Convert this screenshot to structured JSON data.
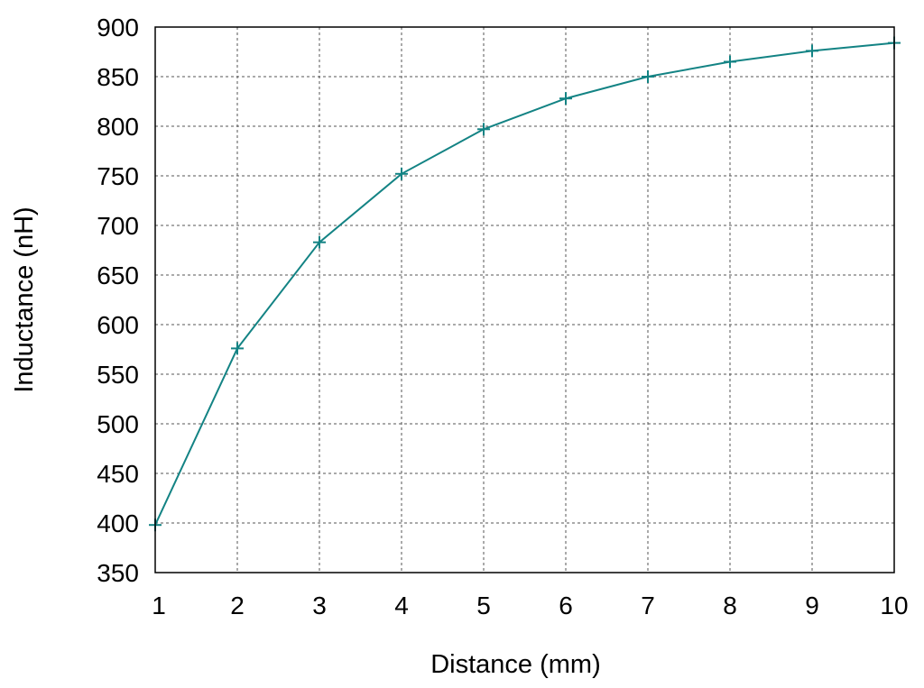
{
  "chart_data": {
    "type": "line",
    "title": "",
    "xlabel": "Distance (mm)",
    "ylabel": "Inductance (nH)",
    "xlim": [
      1,
      10
    ],
    "ylim": [
      350,
      900
    ],
    "xticks": [
      1,
      2,
      3,
      4,
      5,
      6,
      7,
      8,
      9,
      10
    ],
    "yticks": [
      350,
      400,
      450,
      500,
      550,
      600,
      650,
      700,
      750,
      800,
      850,
      900
    ],
    "grid": true,
    "marker": "plus",
    "series": [
      {
        "color": "#138384",
        "x": [
          1,
          2,
          3,
          4,
          5,
          6,
          7,
          8,
          9,
          10
        ],
        "y": [
          398,
          576,
          683,
          752,
          797,
          828,
          850,
          865,
          876,
          884
        ]
      }
    ]
  }
}
